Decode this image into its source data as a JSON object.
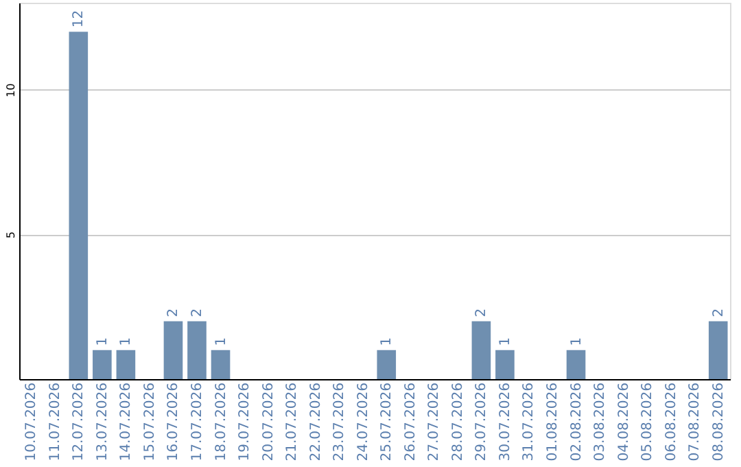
{
  "chart_data": {
    "type": "bar",
    "categories": [
      "10.07.2026",
      "11.07.2026",
      "12.07.2026",
      "13.07.2026",
      "14.07.2026",
      "15.07.2026",
      "16.07.2026",
      "17.07.2026",
      "18.07.2026",
      "19.07.2026",
      "20.07.2026",
      "21.07.2026",
      "22.07.2026",
      "23.07.2026",
      "24.07.2026",
      "25.07.2026",
      "26.07.2026",
      "27.07.2026",
      "28.07.2026",
      "29.07.2026",
      "30.07.2026",
      "31.07.2026",
      "01.08.2026",
      "02.08.2026",
      "03.08.2026",
      "04.08.2026",
      "05.08.2026",
      "06.08.2026",
      "07.08.2026",
      "08.08.2026"
    ],
    "values": [
      0,
      0,
      12,
      1,
      1,
      0,
      2,
      2,
      1,
      0,
      0,
      0,
      0,
      0,
      0,
      1,
      0,
      0,
      0,
      2,
      1,
      0,
      0,
      1,
      0,
      0,
      0,
      0,
      0,
      2
    ],
    "value_labels": [
      null,
      null,
      "12",
      "1",
      "1",
      null,
      "2",
      "2",
      "1",
      null,
      null,
      null,
      null,
      null,
      null,
      "1",
      null,
      null,
      null,
      "2",
      "1",
      null,
      null,
      "1",
      null,
      null,
      null,
      null,
      null,
      "2"
    ],
    "color": "#6f8fb0",
    "ylim": [
      0,
      13
    ],
    "yticks": [
      5,
      10
    ],
    "grid": "y"
  }
}
